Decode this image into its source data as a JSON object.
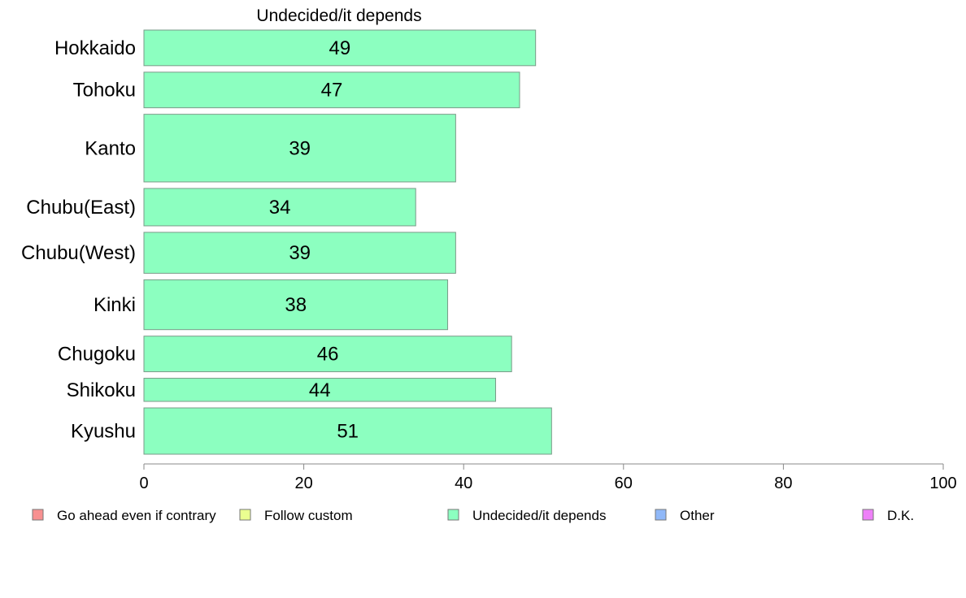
{
  "chart_data": {
    "type": "bar",
    "orientation": "horizontal",
    "title": "Undecided/it depends",
    "xlabel": "",
    "ylabel": "",
    "xlim": [
      0,
      100
    ],
    "x_ticks": [
      "0",
      "20",
      "40",
      "60",
      "80",
      "100"
    ],
    "categories": [
      "Hokkaido",
      "Tohoku",
      "Kanto",
      "Chubu(East)",
      "Chubu(West)",
      "Kinki",
      "Chugoku",
      "Shikoku",
      "Kyushu"
    ],
    "values": [
      49,
      47,
      39,
      34,
      39,
      38,
      46,
      44,
      51
    ],
    "bar_relative_widths": [
      1.0,
      1.0,
      1.9,
      1.05,
      1.15,
      1.4,
      1.0,
      0.65,
      1.3
    ],
    "bar_color": "#8cffc0",
    "bar_stroke": "#7a9a88",
    "grid": false,
    "legend_position": "bottom",
    "legend": [
      {
        "label": "Go ahead even if contrary",
        "color": "#f89090"
      },
      {
        "label": "Follow custom",
        "color": "#eaff90"
      },
      {
        "label": "Undecided/it depends",
        "color": "#8cffc0"
      },
      {
        "label": "Other",
        "color": "#90b8f8"
      },
      {
        "label": "D.K.",
        "color": "#ee80f8"
      }
    ]
  }
}
